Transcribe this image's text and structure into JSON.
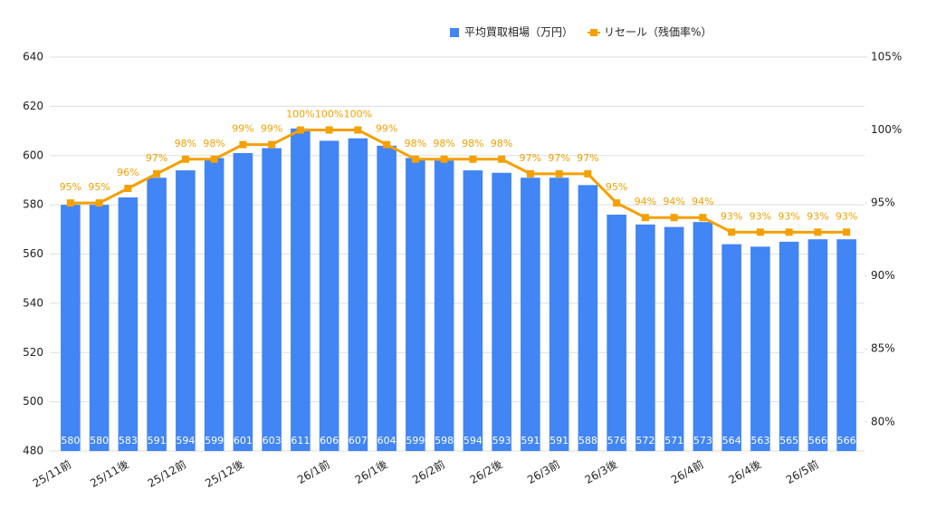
{
  "chart_data": {
    "type": "bar_line",
    "categories": [
      "25/11前",
      null,
      "25/11後",
      null,
      "25/12前",
      null,
      "25/12後",
      null,
      null,
      "26/1前",
      null,
      "26/1後",
      null,
      "26/2前",
      null,
      "26/2後",
      null,
      "26/3前",
      null,
      "26/3後",
      null,
      null,
      "26/4前",
      null,
      "26/4後",
      null,
      "26/5前",
      null
    ],
    "series": [
      {
        "name": "平均買取相場（万円）",
        "color": "#4285f4",
        "values": [
          580,
          580,
          583,
          591,
          594,
          599,
          601,
          603,
          611,
          606,
          607,
          604,
          599,
          598,
          594,
          593,
          591,
          591,
          588,
          576,
          572,
          571,
          573,
          564,
          563,
          565,
          566,
          566
        ]
      },
      {
        "name": "リセール（残価率%）",
        "color": "#f4a000",
        "axis": "y2",
        "values": [
          95,
          95,
          96,
          97,
          98,
          98,
          99,
          99,
          100,
          100,
          100,
          99,
          98,
          98,
          98,
          98,
          97,
          97,
          97,
          95,
          94,
          94,
          94,
          93,
          93,
          93,
          93,
          93
        ],
        "value_labels": [
          "95%",
          "95%",
          "96%",
          "97%",
          "98%",
          "98%",
          "99%",
          "99%",
          "100%",
          "100%",
          "100%",
          "99%",
          "98%",
          "98%",
          "98%",
          "98%",
          "97%",
          "97%",
          "97%",
          "95%",
          "94%",
          "94%",
          "94%",
          "93%",
          "93%",
          "93%",
          "93%",
          "93%"
        ]
      }
    ],
    "ylim": [
      480,
      640
    ],
    "yticks": [
      480,
      500,
      520,
      540,
      560,
      580,
      600,
      620,
      640
    ],
    "y2lim": [
      78,
      105
    ],
    "y2ticks": [
      {
        "value": 80,
        "label": "80%"
      },
      {
        "value": 85,
        "label": "85%"
      },
      {
        "value": 90,
        "label": "90%"
      },
      {
        "value": 95,
        "label": "95%"
      },
      {
        "value": 100,
        "label": "100%"
      },
      {
        "value": 105,
        "label": "105%"
      }
    ],
    "grid": true,
    "legend": "top"
  }
}
